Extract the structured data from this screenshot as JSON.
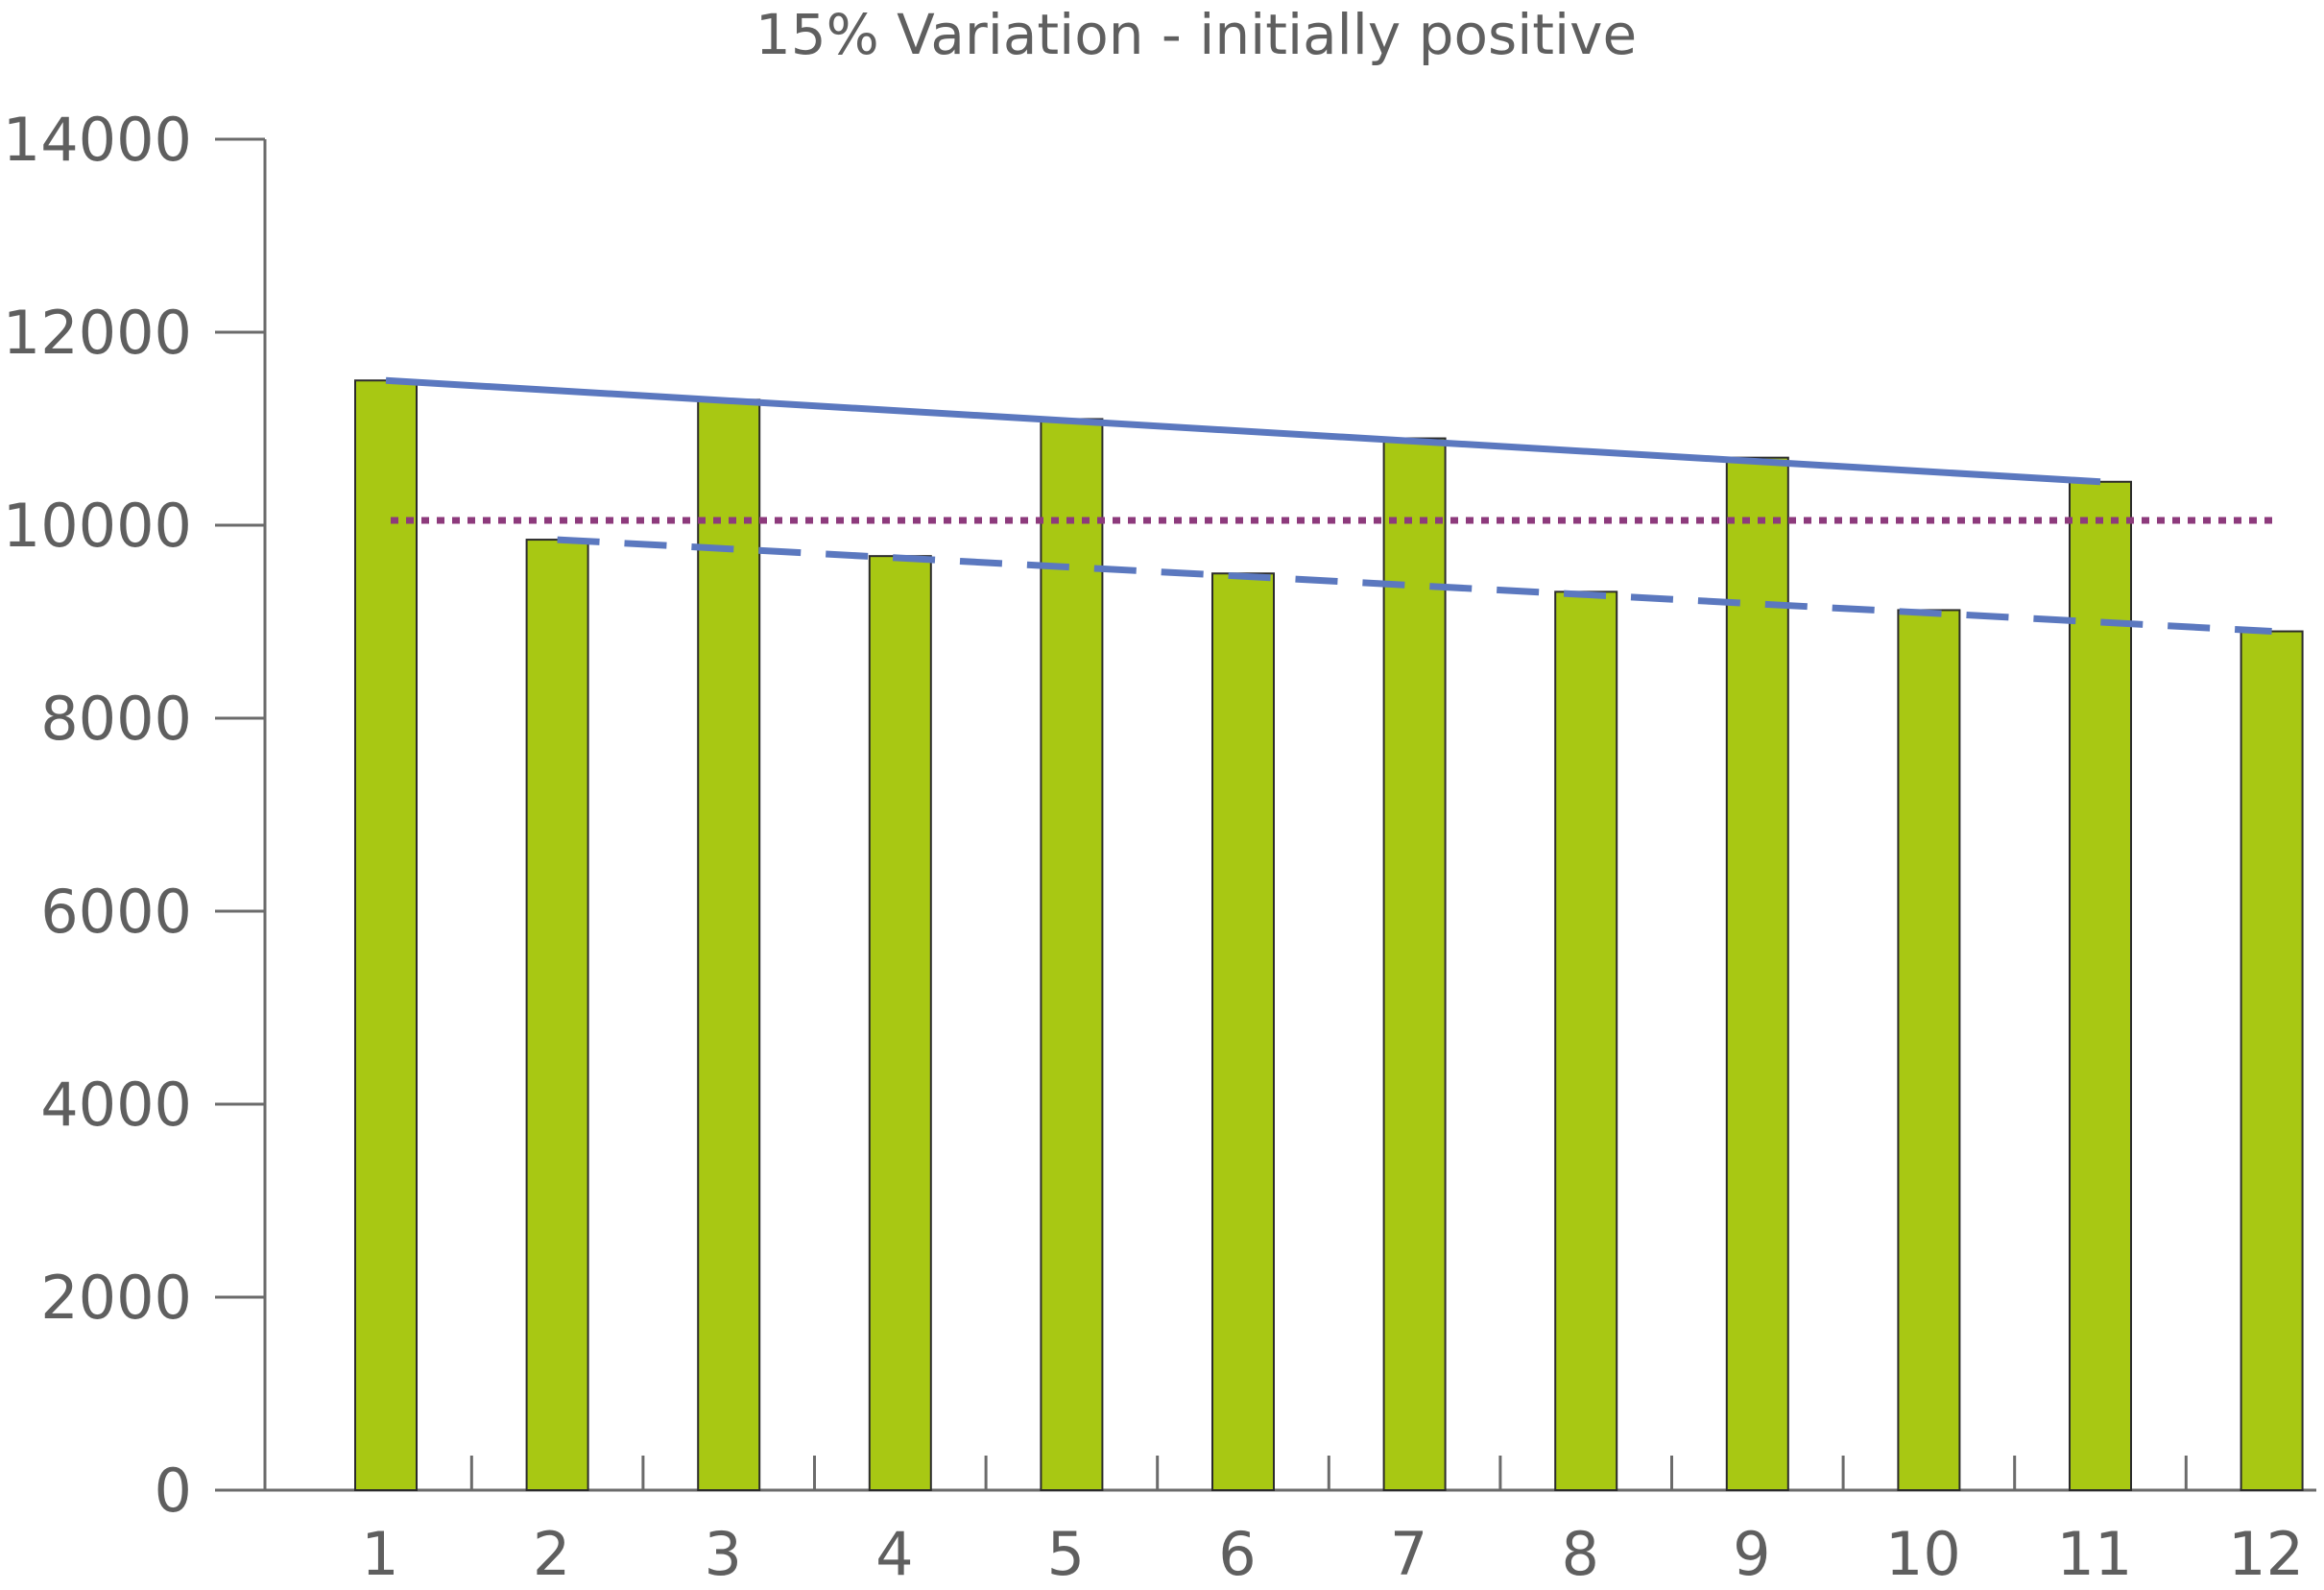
{
  "chart_data": {
    "type": "bar",
    "title": "15% Variation - initially positive",
    "xlabel": "",
    "ylabel": "",
    "categories": [
      "1",
      "2",
      "3",
      "4",
      "5",
      "6",
      "7",
      "8",
      "9",
      "10",
      "11",
      "12"
    ],
    "values": [
      11500,
      9850,
      11300,
      9680,
      11100,
      9500,
      10900,
      9310,
      10700,
      9120,
      10450,
      8900
    ],
    "ylim": [
      0,
      14000
    ],
    "yticks": [
      "0",
      "2000",
      "4000",
      "6000",
      "8000",
      "10000",
      "12000",
      "14000"
    ],
    "grid": false,
    "legend": "none",
    "bar_color": "#a8c813",
    "overlays": [
      {
        "type": "line",
        "style": "solid",
        "color": "#5b78bf",
        "x": [
          1,
          11
        ],
        "y": [
          11500,
          10450
        ]
      },
      {
        "type": "line",
        "style": "dashed",
        "color": "#5b78bf",
        "x": [
          2,
          12
        ],
        "y": [
          9850,
          8900
        ]
      },
      {
        "type": "line",
        "style": "dotted",
        "color": "#8d3a7c",
        "x": [
          1,
          12
        ],
        "y": [
          10050,
          10050
        ]
      }
    ]
  }
}
